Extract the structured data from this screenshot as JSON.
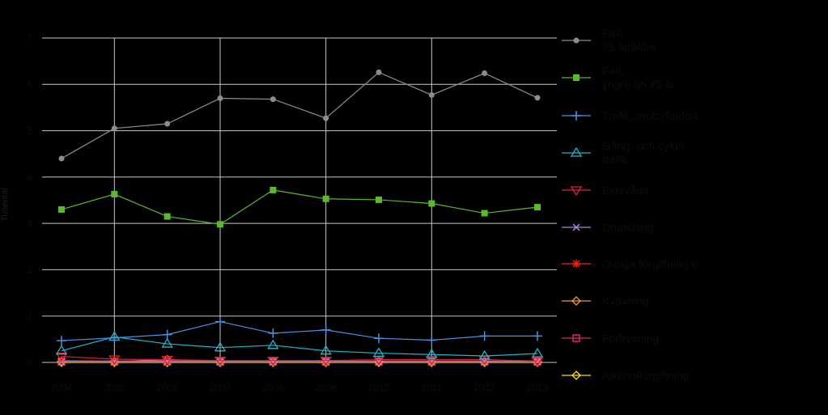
{
  "chart_data": {
    "type": "line",
    "title": "",
    "xlabel": "",
    "ylabel": "Tusental",
    "x": [
      2004,
      2005,
      2006,
      2007,
      2008,
      2009,
      2010,
      2011,
      2012,
      2013
    ],
    "x_tick_labels": [
      "2004",
      "2005",
      "2006",
      "2007",
      "2008",
      "2009",
      "2010",
      "2011",
      "2012",
      "2013"
    ],
    "ylim": [
      0,
      7
    ],
    "y_ticks": [
      0,
      1,
      2,
      3,
      4,
      5,
      6,
      7
    ],
    "y_tick_labels": [
      "0",
      "1",
      "2",
      "3",
      "4",
      "5",
      "6",
      "7"
    ],
    "grid": true,
    "legend_position": "right",
    "series": [
      {
        "name": "Fall,\n75 år/äldre",
        "color": "#8c8c8c",
        "marker": "circle",
        "values": [
          4.4,
          5.05,
          5.15,
          5.7,
          5.68,
          5.27,
          6.26,
          5.77,
          6.24,
          5.71
        ]
      },
      {
        "name": "Fall,\nyngre än 75 år",
        "color": "#5cb82e",
        "marker": "square",
        "values": [
          3.3,
          3.63,
          3.15,
          2.98,
          3.72,
          3.53,
          3.51,
          3.43,
          3.22,
          3.35
        ]
      },
      {
        "name": "Trafik, motorfordon",
        "color": "#4a90e2",
        "marker": "plus",
        "values": [
          0.47,
          0.53,
          0.6,
          0.88,
          0.63,
          0.7,
          0.52,
          0.48,
          0.57,
          0.57
        ]
      },
      {
        "name": "Gång- och cykel\ntrafik",
        "color": "#1fb7c7",
        "marker": "triangle",
        "values": [
          0.25,
          0.55,
          0.4,
          0.32,
          0.37,
          0.25,
          0.2,
          0.17,
          0.14,
          0.19
        ]
      },
      {
        "name": "Eldsvåda",
        "color": "#e0203a",
        "marker": "triangle-down",
        "values": [
          0.13,
          0.07,
          0.06,
          0.04,
          0.04,
          0.04,
          0.06,
          0.06,
          0.06,
          0.03
        ]
      },
      {
        "name": "Drunkning",
        "color": "#a78bd0",
        "marker": "x",
        "values": [
          0.02,
          0.02,
          0.02,
          0.02,
          0.02,
          0.02,
          0.02,
          0.02,
          0.02,
          0.02
        ]
      },
      {
        "name": "Övriga förgiftningar",
        "color": "#ff1a1a",
        "marker": "asterisk",
        "values": [
          0.04,
          0.03,
          0.03,
          0.03,
          0.03,
          0.03,
          0.03,
          0.03,
          0.03,
          0.03
        ]
      },
      {
        "name": "Kvävning",
        "color": "#f0a020",
        "marker": "diamond",
        "values": [
          0.02,
          0.02,
          0.06,
          0.02,
          0.02,
          0.02,
          0.02,
          0.02,
          0.02,
          0.02
        ]
      },
      {
        "name": "Förfrysning",
        "color": "#e0206e",
        "marker": "square-open",
        "values": [
          0.01,
          0.01,
          0.01,
          0.01,
          0.01,
          0.01,
          0.01,
          0.01,
          0.01,
          0.01
        ]
      },
      {
        "name": "Alkoholförgiftning",
        "color": "#ffe600",
        "marker": "diamond",
        "values": [
          0.0,
          0.0,
          0.0,
          0.0,
          0.0,
          0.0,
          0.0,
          0.0,
          0.0,
          0.0
        ]
      }
    ]
  }
}
